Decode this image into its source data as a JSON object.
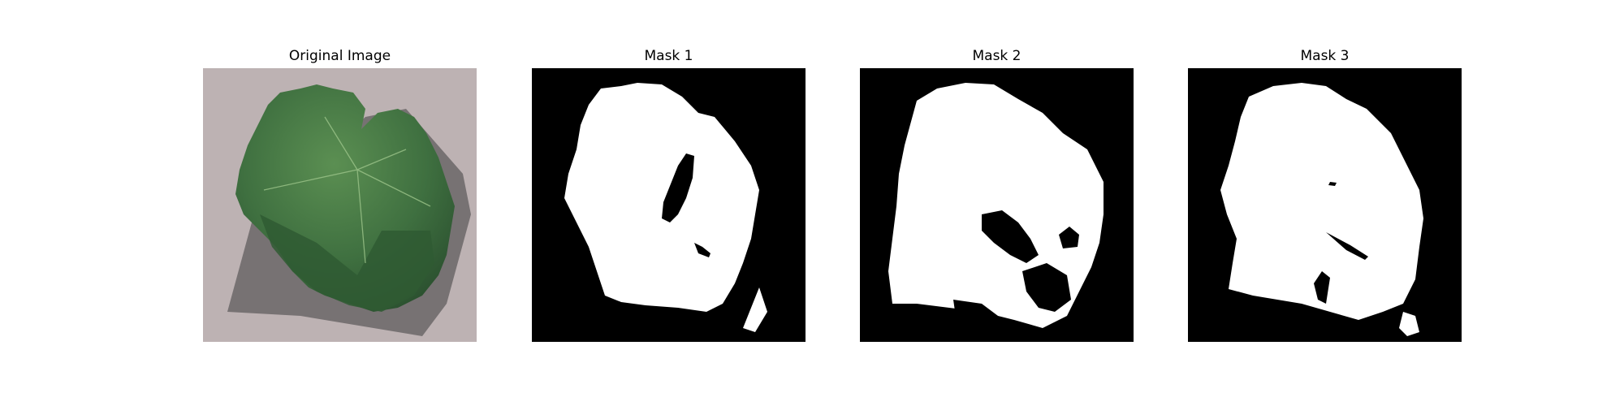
{
  "panels": [
    {
      "title": "Original Image"
    },
    {
      "title": "Mask 1"
    },
    {
      "title": "Mask 2"
    },
    {
      "title": "Mask 3"
    }
  ],
  "colors": {
    "background": "#ffffff",
    "concrete": "#bdb2b3",
    "shadow": "#6f6a6b",
    "leaf_dark": "#2f5a33",
    "leaf_light": "#4e8048",
    "mask_bg": "#000000",
    "mask_fg": "#ffffff"
  }
}
